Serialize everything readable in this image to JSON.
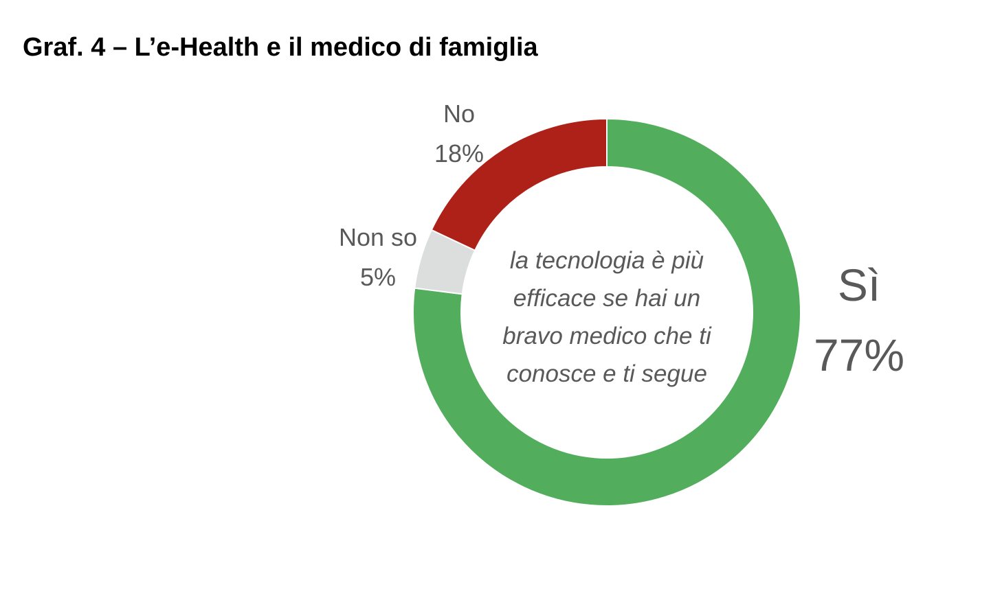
{
  "chart_data": {
    "type": "pie",
    "variant": "donut",
    "title": "Graf. 4 – L’e-Health e il medico di famiglia",
    "center_text": [
      "la tecnologia è più",
      "efficace se hai un",
      "bravo medico che ti",
      "conosce e ti segue"
    ],
    "slices": [
      {
        "label": "Sì",
        "value": 77,
        "value_label": "77%",
        "color": "#52AE5C"
      },
      {
        "label": "Non so",
        "value": 5,
        "value_label": "5%",
        "color": "#DCDEDE"
      },
      {
        "label": "No",
        "value": 18,
        "value_label": "18%",
        "color": "#AE2119"
      }
    ],
    "legend": "none",
    "start": "12 o'clock",
    "direction": "clockwise"
  }
}
